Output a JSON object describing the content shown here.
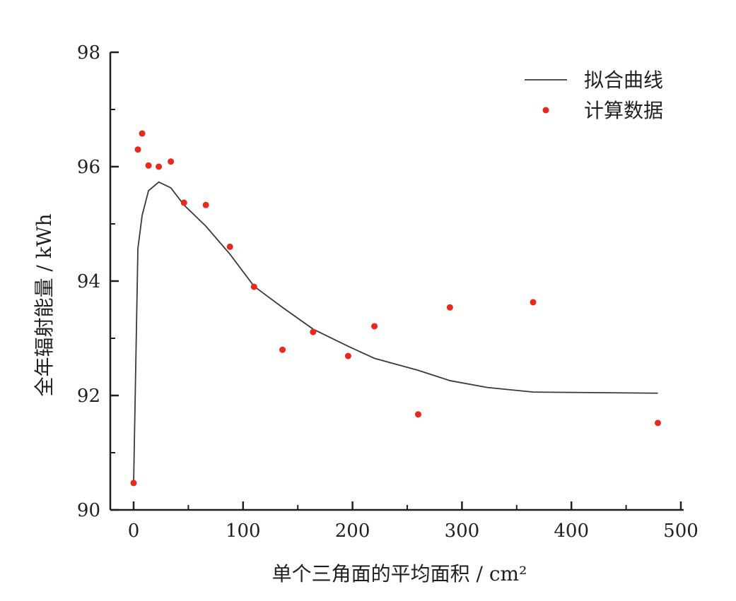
{
  "chart_data": {
    "type": "line+scatter",
    "title": "",
    "xlabel": "单个三角面的平均面积 / cm²",
    "ylabel": "全年辐射能量 / kWh",
    "xlim": [
      -21,
      503
    ],
    "ylim": [
      90,
      98
    ],
    "xticks": [
      0,
      100,
      200,
      300,
      400,
      500
    ],
    "yticks": [
      90,
      92,
      94,
      96,
      98
    ],
    "grid": false,
    "legend_position": "top-right",
    "series": [
      {
        "name": "拟合曲线",
        "kind": "line",
        "color": "#3a3a3a",
        "x": [
          0,
          3.9,
          7.8,
          13.6,
          23,
          34,
          46,
          66,
          88,
          110,
          136,
          164,
          196,
          220,
          260,
          289,
          323,
          365,
          479
        ],
        "y": [
          90.47,
          94.57,
          95.15,
          95.58,
          95.73,
          95.63,
          95.33,
          94.96,
          94.47,
          93.91,
          93.54,
          93.16,
          92.86,
          92.65,
          92.44,
          92.26,
          92.14,
          92.06,
          92.04
        ]
      },
      {
        "name": "计算数据",
        "kind": "scatter",
        "color": "#e8291c",
        "x": [
          0,
          3.9,
          7.8,
          13.6,
          23,
          34,
          46,
          66,
          88,
          110,
          136,
          164,
          196,
          220,
          260,
          289,
          365,
          479
        ],
        "y": [
          90.47,
          96.3,
          96.58,
          96.02,
          96.0,
          96.09,
          95.37,
          95.33,
          94.6,
          93.9,
          92.8,
          93.11,
          92.69,
          93.21,
          91.67,
          93.54,
          93.63,
          91.52
        ]
      }
    ]
  }
}
